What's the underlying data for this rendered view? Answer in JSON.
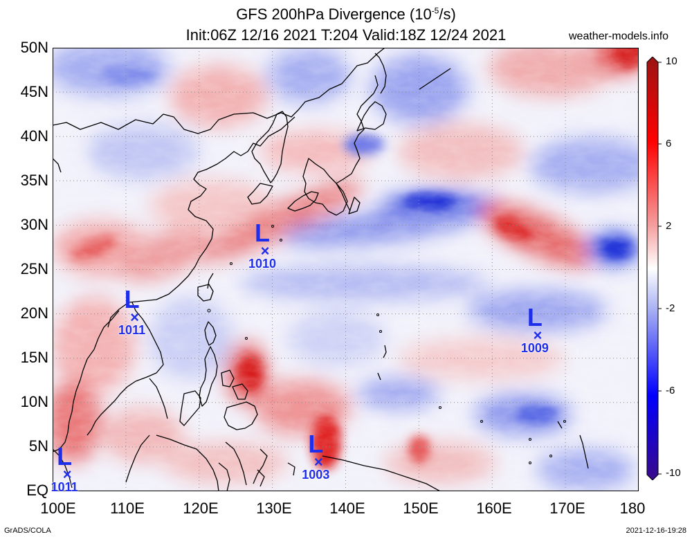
{
  "header": {
    "title_main": "GFS 200hPa Divergence (10",
    "title_exp": "-5",
    "title_end": "/s)",
    "subtitle": "Init:06Z 12/16 2021 T:204 Valid:18Z 12/24 2021",
    "brand": "weather-models.info"
  },
  "axes": {
    "y_ticks": [
      "50N",
      "45N",
      "40N",
      "35N",
      "30N",
      "25N",
      "20N",
      "15N",
      "10N",
      "5N",
      "EQ"
    ],
    "x_ticks": [
      "100E",
      "110E",
      "120E",
      "130E",
      "140E",
      "150E",
      "160E",
      "170E",
      "180"
    ]
  },
  "colorbar": {
    "labels": [
      "10",
      "6",
      "2",
      "-2",
      "-6",
      "-10"
    ]
  },
  "pressure_lows": [
    {
      "symbol": "L",
      "value": "1010",
      "lon": 129.0,
      "lat": 27.0
    },
    {
      "symbol": "L",
      "value": "1011",
      "lon": 111.2,
      "lat": 19.5
    },
    {
      "symbol": "L",
      "value": "1009",
      "lon": 166.2,
      "lat": 17.5
    },
    {
      "symbol": "L",
      "value": "1003",
      "lon": 136.3,
      "lat": 3.2
    },
    {
      "symbol": "L",
      "value": "1011",
      "lon": 102.0,
      "lat": 1.8
    }
  ],
  "footer": {
    "left": "GrADS/COLA",
    "right": "2021-12-16-19:28"
  }
}
